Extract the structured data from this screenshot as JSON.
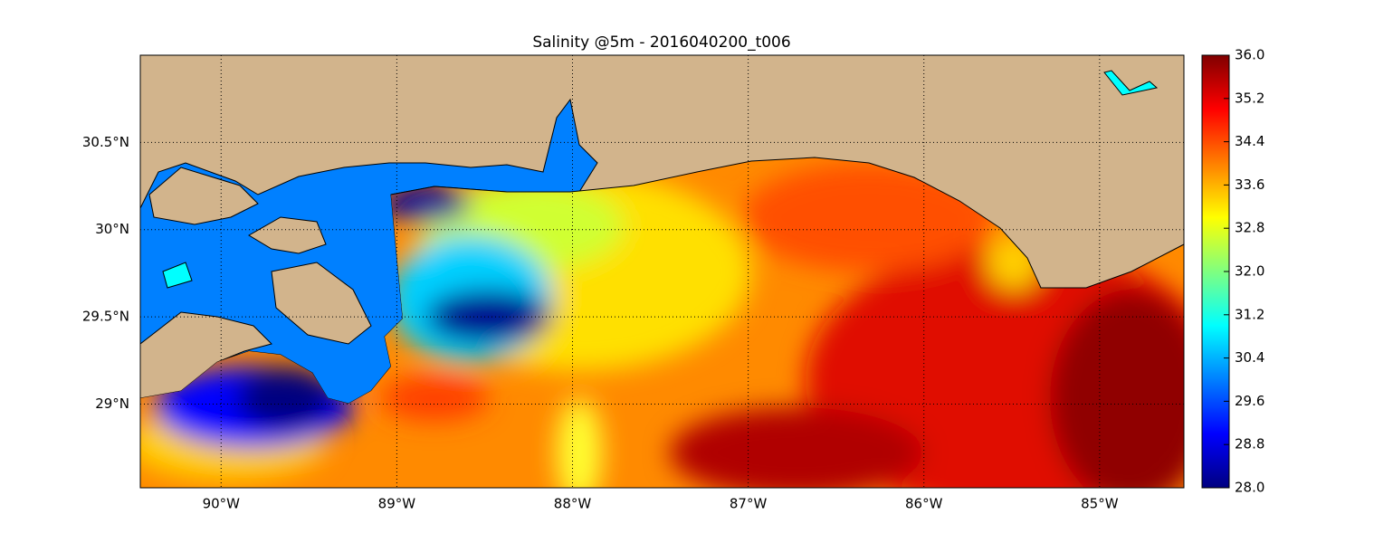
{
  "chart_data": {
    "type": "map",
    "title": "Salinity @5m - 2016040200_t006",
    "xlim": [
      -90.46,
      -84.52
    ],
    "ylim": [
      28.52,
      31.0
    ],
    "xticks": [
      {
        "value": -90,
        "label": "90°W"
      },
      {
        "value": -89,
        "label": "89°W"
      },
      {
        "value": -88,
        "label": "88°W"
      },
      {
        "value": -87,
        "label": "87°W"
      },
      {
        "value": -86,
        "label": "86°W"
      },
      {
        "value": -85,
        "label": "85°W"
      }
    ],
    "yticks": [
      {
        "value": 29,
        "label": "29°N"
      },
      {
        "value": 29.5,
        "label": "29.5°N"
      },
      {
        "value": 30,
        "label": "30°N"
      },
      {
        "value": 30.5,
        "label": "30.5°N"
      }
    ],
    "grid": true,
    "colorbar": {
      "lim": [
        28,
        36
      ],
      "colormap": "jet",
      "ticks": [
        {
          "value": 28,
          "label": "28.0"
        },
        28.8,
        29.6,
        30.4,
        31.2,
        {
          "value": 32,
          "label": "32.0"
        },
        32.8,
        33.6,
        34.4,
        35.2,
        {
          "value": 36,
          "label": "36.0"
        }
      ]
    }
  }
}
